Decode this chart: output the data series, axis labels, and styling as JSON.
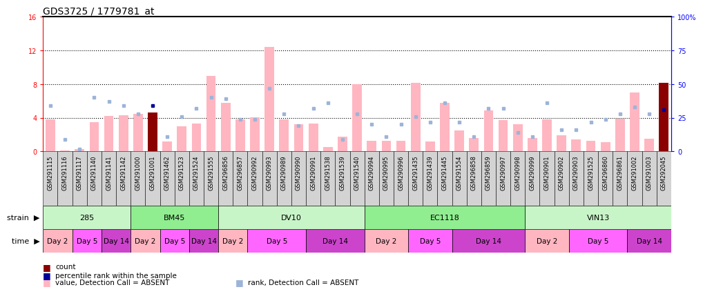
{
  "title": "GDS3725 / 1779781_at",
  "samples": [
    "GSM291115",
    "GSM291116",
    "GSM291117",
    "GSM291140",
    "GSM291141",
    "GSM291142",
    "GSM291000",
    "GSM291001",
    "GSM291462",
    "GSM291523",
    "GSM291524",
    "GSM291555",
    "GSM296856",
    "GSM296857",
    "GSM290992",
    "GSM290993",
    "GSM290989",
    "GSM290990",
    "GSM290991",
    "GSM291538",
    "GSM291539",
    "GSM291540",
    "GSM290994",
    "GSM290995",
    "GSM290996",
    "GSM291435",
    "GSM291439",
    "GSM291445",
    "GSM291554",
    "GSM296858",
    "GSM296859",
    "GSM290997",
    "GSM290998",
    "GSM290999",
    "GSM290901",
    "GSM290902",
    "GSM290903",
    "GSM291525",
    "GSM296860",
    "GSM296861",
    "GSM291002",
    "GSM291003",
    "GSM292045"
  ],
  "values": [
    3.8,
    0.1,
    0.3,
    3.5,
    4.2,
    4.3,
    4.5,
    4.6,
    1.2,
    3.0,
    3.3,
    9.0,
    5.8,
    3.8,
    4.1,
    12.4,
    3.8,
    3.2,
    3.3,
    0.5,
    1.8,
    8.0,
    1.3,
    1.3,
    1.3,
    8.2,
    1.2,
    5.8,
    2.5,
    1.6,
    4.9,
    3.7,
    3.2,
    1.6,
    3.8,
    1.9,
    1.4,
    1.3,
    1.1,
    3.9,
    7.0,
    1.5,
    8.2
  ],
  "ranks": [
    34,
    9,
    2,
    40,
    37,
    34,
    28,
    34,
    11,
    26,
    32,
    40,
    39,
    24,
    24,
    47,
    28,
    19,
    32,
    36,
    9,
    28,
    20,
    11,
    20,
    26,
    22,
    36,
    22,
    11,
    32,
    32,
    14,
    11,
    36,
    16,
    16,
    22,
    24,
    28,
    33,
    28,
    31
  ],
  "detection_call": [
    "A",
    "A",
    "A",
    "A",
    "A",
    "A",
    "A",
    "P",
    "A",
    "A",
    "A",
    "A",
    "A",
    "A",
    "A",
    "A",
    "A",
    "A",
    "A",
    "A",
    "A",
    "A",
    "A",
    "A",
    "A",
    "A",
    "A",
    "A",
    "A",
    "A",
    "A",
    "A",
    "A",
    "A",
    "A",
    "A",
    "A",
    "A",
    "A",
    "A",
    "A",
    "A",
    "P"
  ],
  "strains": [
    {
      "label": "285",
      "start": 0,
      "end": 5
    },
    {
      "label": "BM45",
      "start": 6,
      "end": 11
    },
    {
      "label": "DV10",
      "start": 12,
      "end": 21
    },
    {
      "label": "EC1118",
      "start": 22,
      "end": 32
    },
    {
      "label": "VIN13",
      "start": 33,
      "end": 42
    }
  ],
  "times": [
    {
      "label": "Day 2",
      "start": 0,
      "end": 1,
      "color": "#FFB6C1"
    },
    {
      "label": "Day 5",
      "start": 2,
      "end": 3,
      "color": "#FF66FF"
    },
    {
      "label": "Day 14",
      "start": 4,
      "end": 5,
      "color": "#CC44CC"
    },
    {
      "label": "Day 2",
      "start": 6,
      "end": 7,
      "color": "#FFB6C1"
    },
    {
      "label": "Day 5",
      "start": 8,
      "end": 9,
      "color": "#FF66FF"
    },
    {
      "label": "Day 14",
      "start": 10,
      "end": 11,
      "color": "#CC44CC"
    },
    {
      "label": "Day 2",
      "start": 12,
      "end": 13,
      "color": "#FFB6C1"
    },
    {
      "label": "Day 5",
      "start": 14,
      "end": 17,
      "color": "#FF66FF"
    },
    {
      "label": "Day 14",
      "start": 18,
      "end": 21,
      "color": "#CC44CC"
    },
    {
      "label": "Day 2",
      "start": 22,
      "end": 24,
      "color": "#FFB6C1"
    },
    {
      "label": "Day 5",
      "start": 25,
      "end": 27,
      "color": "#FF66FF"
    },
    {
      "label": "Day 14",
      "start": 28,
      "end": 32,
      "color": "#CC44CC"
    },
    {
      "label": "Day 2",
      "start": 33,
      "end": 35,
      "color": "#FFB6C1"
    },
    {
      "label": "Day 5",
      "start": 36,
      "end": 39,
      "color": "#FF66FF"
    },
    {
      "label": "Day 14",
      "start": 40,
      "end": 42,
      "color": "#CC44CC"
    }
  ],
  "ylim_left": [
    0,
    16
  ],
  "ylim_right": [
    0,
    100
  ],
  "yticks_left": [
    0,
    4,
    8,
    12,
    16
  ],
  "yticks_right": [
    0,
    25,
    50,
    75,
    100
  ],
  "bar_color_absent": "#FFB6C1",
  "bar_color_present": "#8B0000",
  "rank_color_absent": "#9DB4D8",
  "rank_color_present": "#000099",
  "strain_color_light": "#C8F5C8",
  "strain_color_dark": "#7CCD7C",
  "tick_label_bg": "#D3D3D3",
  "title_fontsize": 10,
  "tick_fontsize": 6.0,
  "label_fontsize": 8,
  "legend_fontsize": 7.5
}
